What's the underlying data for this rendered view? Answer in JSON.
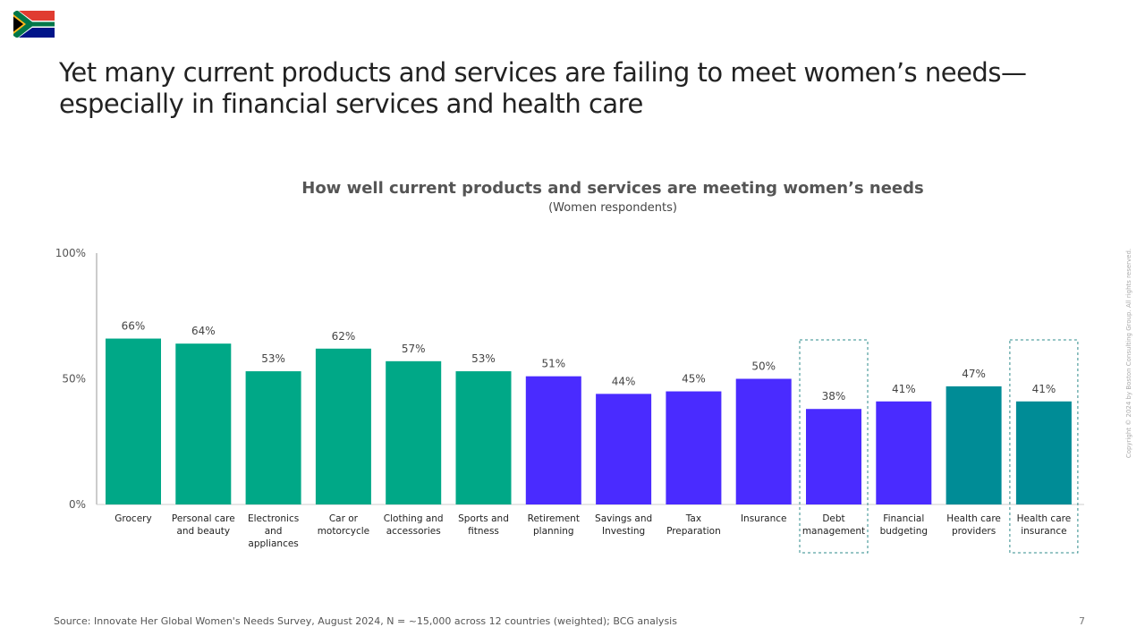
{
  "header": {
    "title_line1": "Yet many current products and services are failing to meet women’s needs—",
    "title_line2": "especially in financial services and health care",
    "flag_icon": "south-africa-flag"
  },
  "chart_data": {
    "type": "bar",
    "title": "How well current products and services are meeting women’s needs",
    "subtitle": "(Women respondents)",
    "categories": [
      [
        "Grocery"
      ],
      [
        "Personal care",
        "and beauty"
      ],
      [
        "Electronics",
        "and",
        "appliances"
      ],
      [
        "Car or",
        "motorcycle"
      ],
      [
        "Clothing and",
        "accessories"
      ],
      [
        "Sports and",
        "fitness"
      ],
      [
        "Retirement",
        "planning"
      ],
      [
        "Savings and",
        "Investing"
      ],
      [
        "Tax",
        "Preparation"
      ],
      [
        "Insurance"
      ],
      [
        "Debt",
        "management"
      ],
      [
        "Financial",
        "budgeting"
      ],
      [
        "Health care",
        "providers"
      ],
      [
        "Health care",
        "insurance"
      ]
    ],
    "values": [
      66,
      64,
      53,
      62,
      57,
      53,
      51,
      44,
      45,
      50,
      38,
      41,
      47,
      41
    ],
    "labels": [
      "66%",
      "64%",
      "53%",
      "62%",
      "57%",
      "53%",
      "51%",
      "44%",
      "45%",
      "50%",
      "38%",
      "41%",
      "47%",
      "41%"
    ],
    "groups": [
      "consumer",
      "consumer",
      "consumer",
      "consumer",
      "consumer",
      "consumer",
      "financial",
      "financial",
      "financial",
      "financial",
      "financial",
      "financial",
      "health",
      "health"
    ],
    "colors": {
      "consumer": "#00A887",
      "financial": "#4A2BFF",
      "health": "#008C96",
      "highlight": "#2E8B8B"
    },
    "highlighted": [
      10,
      13
    ],
    "yticks": [
      "0%",
      "50%",
      "100%"
    ],
    "ytick_values": [
      0,
      50,
      100
    ],
    "ylim": [
      0,
      100
    ],
    "grid": false
  },
  "footer": {
    "source": "Source: Innovate Her Global Women's Needs Survey, August 2024, N = ~15,000 across 12 countries (weighted); BCG analysis",
    "page": "7",
    "copyright": "Copyright © 2024 by Boston Consulting Group. All rights reserved."
  }
}
